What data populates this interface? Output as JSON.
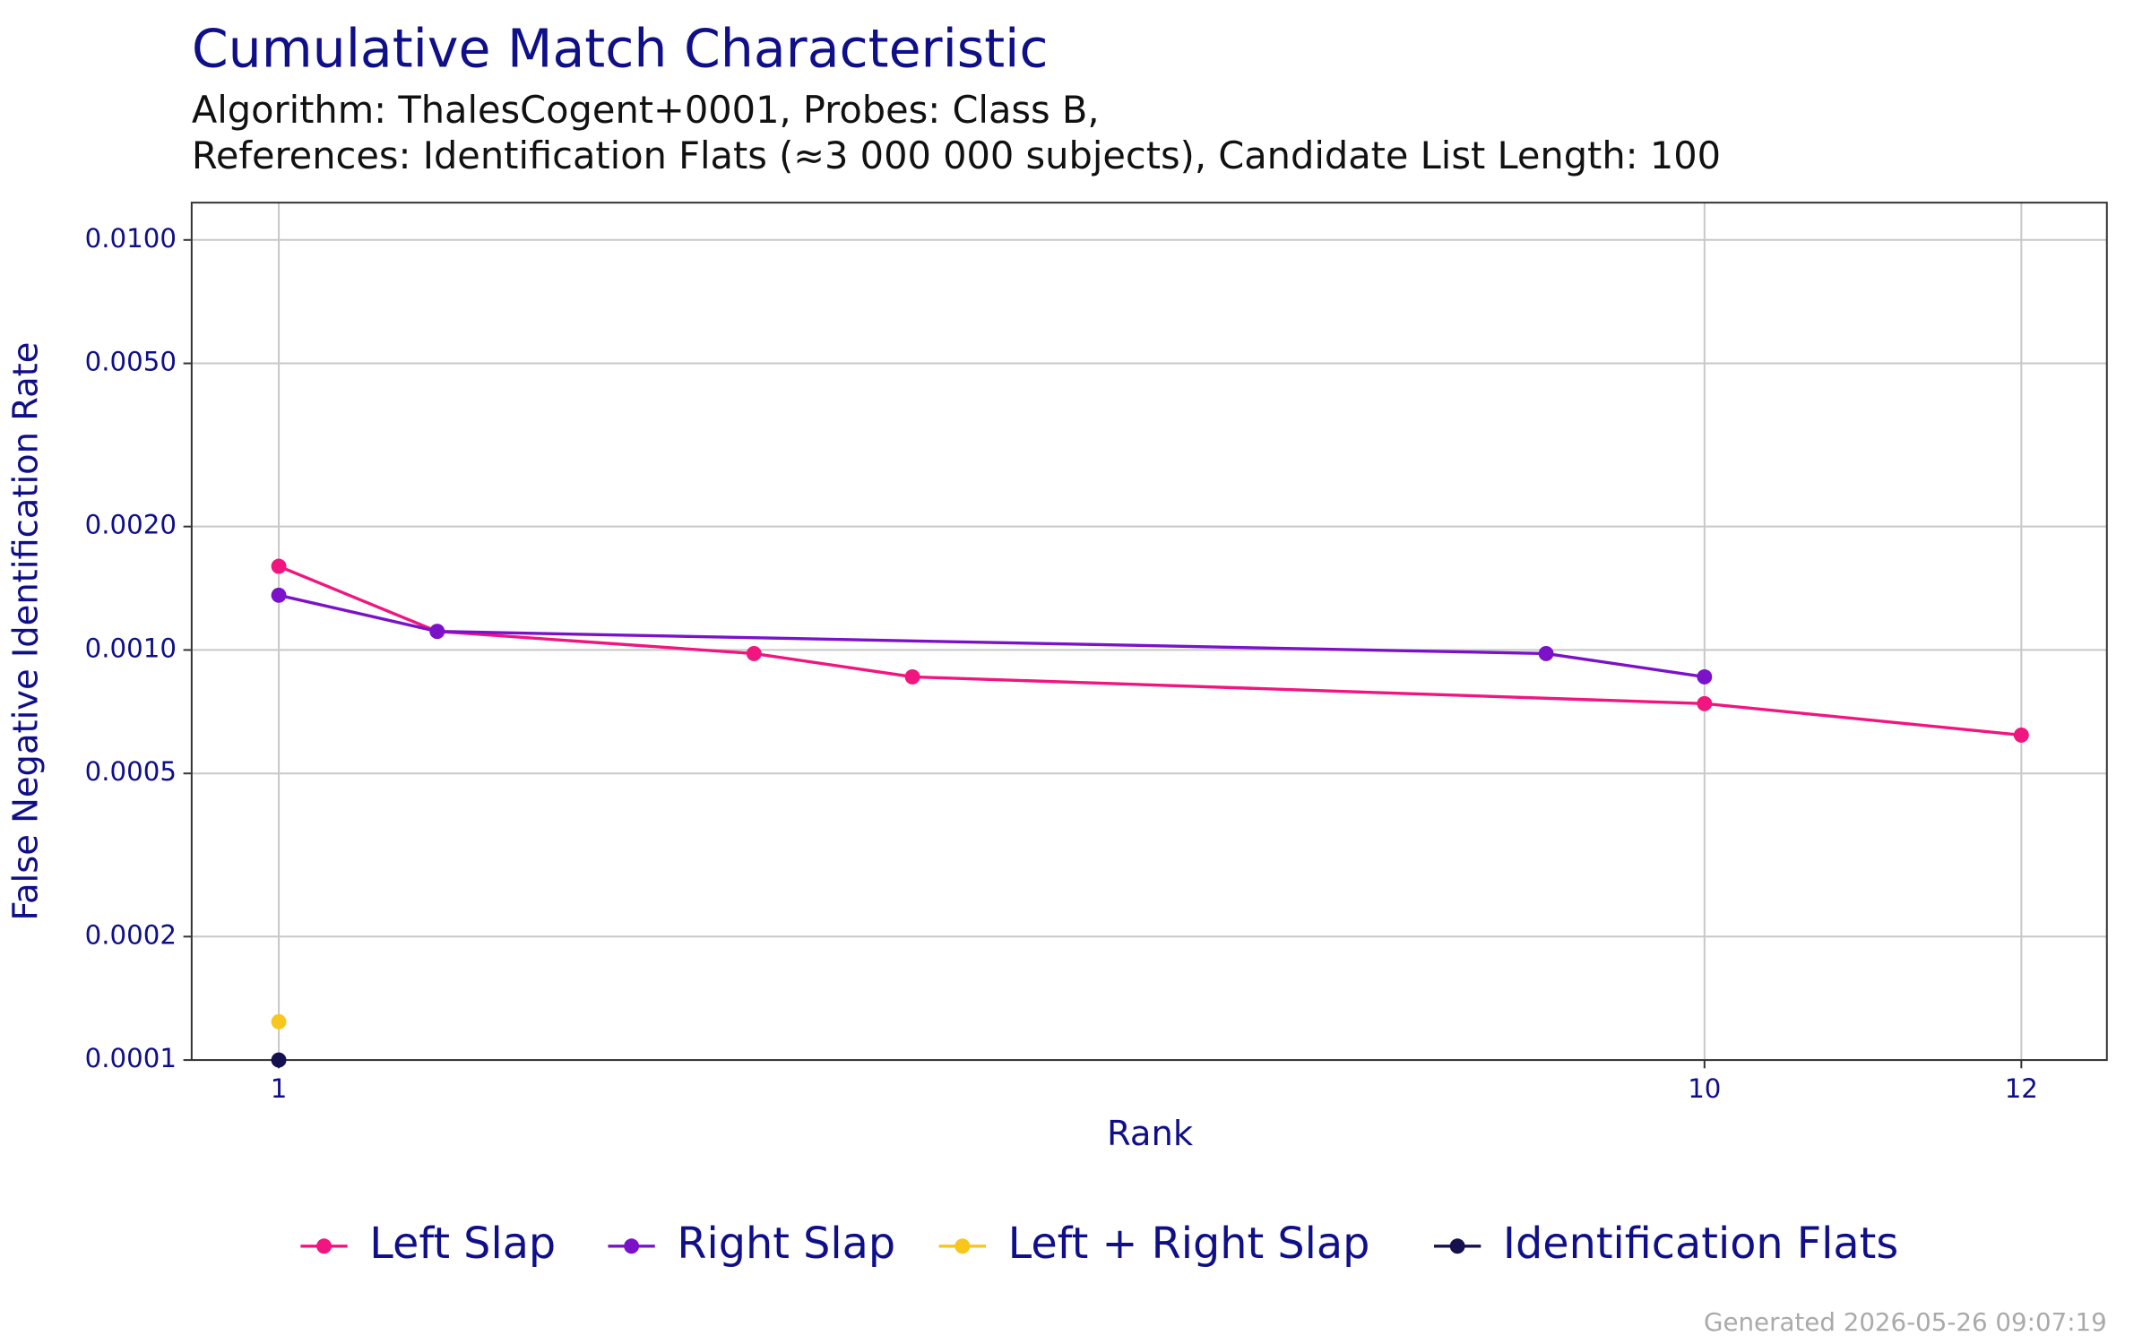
{
  "chart_data": {
    "type": "line",
    "title": "Cumulative Match Characteristic",
    "subtitle": [
      "Algorithm: ThalesCogent+0001, Probes: Class B,",
      "References: Identification Flats (≈3 000 000 subjects), Candidate List Length: 100"
    ],
    "x_label": "Rank",
    "y_label": "False Negative Identification Rate",
    "xlim": [
      0.45,
      12.54
    ],
    "xticks": [
      1,
      10,
      12
    ],
    "ylim": [
      0.0001,
      0.01233
    ],
    "y_scale": "log",
    "yticks": [
      {
        "value": 0.0001,
        "label": "0.0001"
      },
      {
        "value": 0.0002,
        "label": "0.0002"
      },
      {
        "value": 0.0005,
        "label": "0.0005"
      },
      {
        "value": 0.001,
        "label": "0.0010"
      },
      {
        "value": 0.002,
        "label": "0.0020"
      },
      {
        "value": 0.005,
        "label": "0.0050"
      },
      {
        "value": 0.01,
        "label": "0.0100"
      }
    ],
    "grid": true,
    "legend": "bottom",
    "series": [
      {
        "name": "Left Slap",
        "color": "#f0157f",
        "x": [
          1,
          2,
          4,
          5,
          10,
          12
        ],
        "values": [
          0.0016,
          0.00111,
          0.00098,
          0.00086,
          0.00074,
          0.00062
        ]
      },
      {
        "name": "Right Slap",
        "color": "#7b12c9",
        "x": [
          1,
          2,
          9,
          10
        ],
        "values": [
          0.00136,
          0.00111,
          0.00098,
          0.00086
        ]
      },
      {
        "name": "Left + Right Slap",
        "color": "#f8c61c",
        "x": [
          1
        ],
        "values": [
          0.000124
        ]
      },
      {
        "name": "Identification Flats",
        "color": "#15104e",
        "x": [
          1
        ],
        "values": [
          0.0001
        ]
      }
    ],
    "footer": "Generated 2026-05-26 09:07:19"
  }
}
